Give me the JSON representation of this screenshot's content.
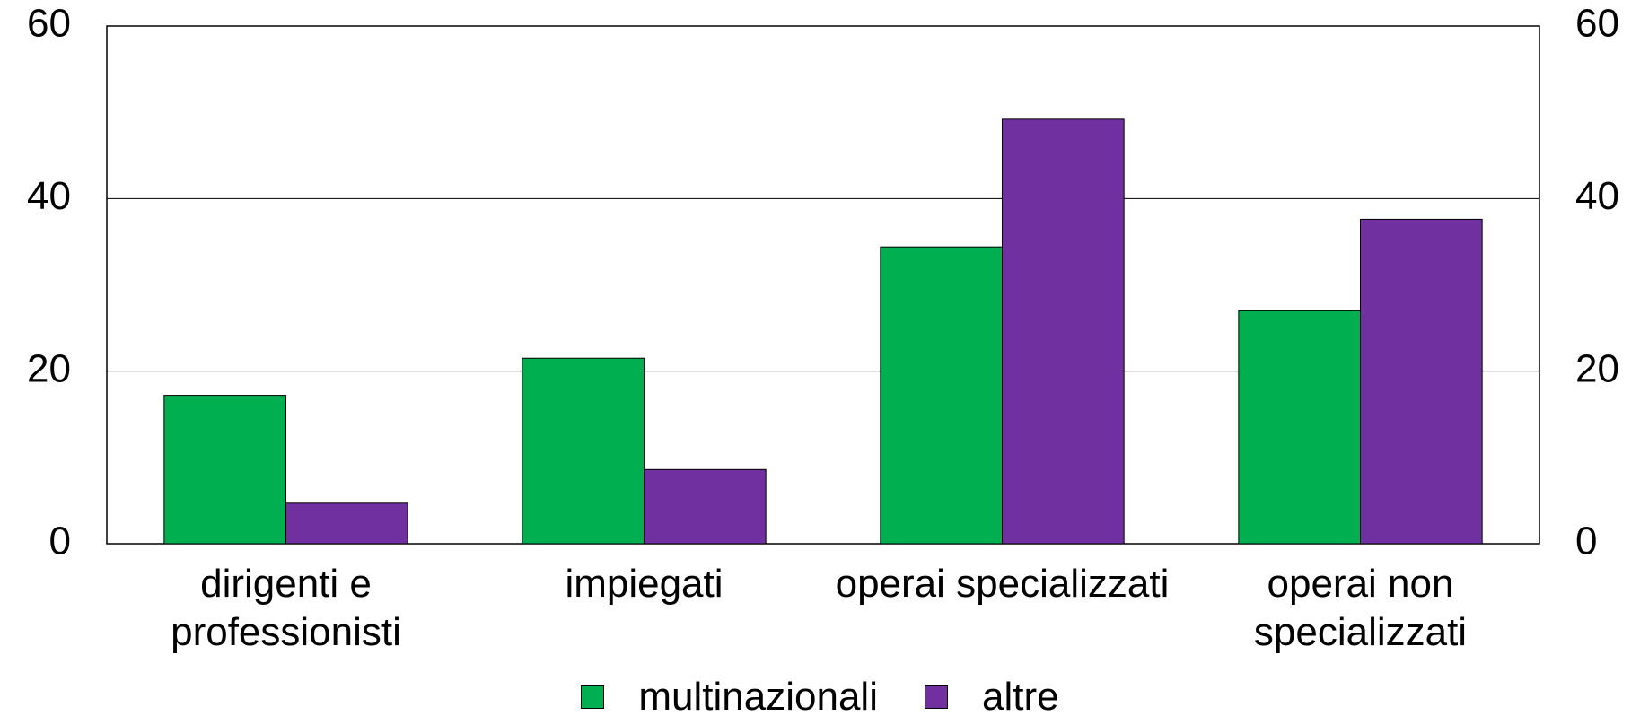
{
  "chart_data": {
    "type": "bar",
    "categories": [
      "dirigenti e professionisti",
      "impiegati",
      "operai specializzati",
      "operai non specializzati"
    ],
    "series": [
      {
        "name": "multinazionali",
        "color": "#00b050",
        "values": [
          17.2,
          21.5,
          34.4,
          27.0
        ]
      },
      {
        "name": "altre",
        "color": "#7030a0",
        "values": [
          4.7,
          8.6,
          49.2,
          37.6
        ]
      }
    ],
    "ylim": [
      0,
      60
    ],
    "yticks": [
      0,
      20,
      40,
      60
    ],
    "grid": true,
    "legend": "bottom"
  }
}
